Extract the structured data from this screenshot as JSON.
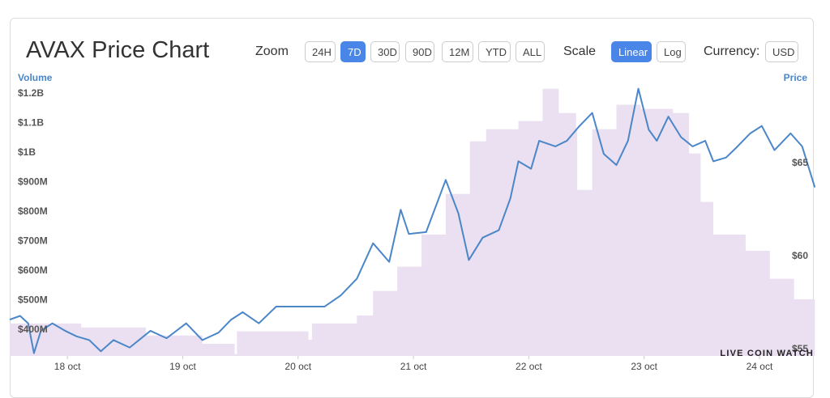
{
  "header": {
    "title": "AVAX Price Chart"
  },
  "controls": {
    "zoom": {
      "label": "Zoom",
      "options": [
        "24H",
        "7D",
        "30D",
        "90D",
        "12M",
        "YTD",
        "ALL"
      ],
      "active": 1
    },
    "scale": {
      "label": "Scale",
      "options": [
        "Linear",
        "Log"
      ],
      "active": 0
    },
    "currency": {
      "label": "Currency:",
      "options": [
        "USD"
      ],
      "active": -1
    }
  },
  "watermark": "LIVE COIN WATCH",
  "chart_data": {
    "type": "line",
    "y_label": "Volume",
    "y2_label": "Price",
    "xlim": [
      17.5,
      24.485
    ],
    "xticks": [
      {
        "value": 18,
        "label": "18 oct"
      },
      {
        "value": 19,
        "label": "19 oct"
      },
      {
        "value": 20,
        "label": "20 oct"
      },
      {
        "value": 21,
        "label": "21 oct"
      },
      {
        "value": 22,
        "label": "22 oct"
      },
      {
        "value": 23,
        "label": "23 oct"
      },
      {
        "value": 24,
        "label": "24 oct"
      }
    ],
    "ylim": [
      312000000,
      1229000000
    ],
    "yticks": [
      {
        "value": 400000000,
        "label": "$400M"
      },
      {
        "value": 500000000,
        "label": "$500M"
      },
      {
        "value": 600000000,
        "label": "$600M"
      },
      {
        "value": 700000000,
        "label": "$700M"
      },
      {
        "value": 800000000,
        "label": "$800M"
      },
      {
        "value": 900000000,
        "label": "$900M"
      },
      {
        "value": 1000000000,
        "label": "$1B"
      },
      {
        "value": 1100000000,
        "label": "$1.1B"
      },
      {
        "value": 1200000000,
        "label": "$1.2B"
      }
    ],
    "y2lim": [
      54.65,
      69.2
    ],
    "y2ticks": [
      {
        "value": 55,
        "label": "$55"
      },
      {
        "value": 60,
        "label": "$60"
      },
      {
        "value": 65,
        "label": "$65"
      }
    ],
    "grid": false,
    "series": [
      {
        "kind": "area",
        "color": "#ebe0f1",
        "x": [
          17.5,
          18.12,
          18.68,
          19.17,
          19.45,
          19.47,
          20.09,
          20.12,
          20.51,
          20.65,
          20.86,
          21.07,
          21.28,
          21.49,
          21.63,
          21.91,
          22.12,
          22.26,
          22.41,
          22.42,
          22.53,
          22.55,
          22.76,
          22.97,
          23.25,
          23.39,
          23.49,
          23.6,
          23.88,
          24.09,
          24.3,
          24.48
        ],
        "values": [
          422000000,
          408000000,
          381000000,
          353000000,
          318000000,
          395000000,
          367000000,
          422000000,
          449000000,
          532000000,
          614000000,
          723000000,
          860000000,
          1038000000,
          1079000000,
          1107000000,
          1216000000,
          1134000000,
          1079000000,
          874000000,
          874000000,
          1079000000,
          1162000000,
          1148000000,
          1134000000,
          997000000,
          833000000,
          723000000,
          668000000,
          573000000,
          504000000,
          499000000
        ]
      },
      {
        "kind": "line",
        "axis": "y2",
        "color": "#4a86c8",
        "x": [
          17.5,
          17.59,
          17.66,
          17.71,
          17.77,
          17.87,
          17.98,
          18.08,
          18.19,
          18.29,
          18.4,
          18.54,
          18.72,
          18.86,
          19.03,
          19.17,
          19.31,
          19.42,
          19.52,
          19.66,
          19.81,
          19.95,
          20.09,
          20.23,
          20.37,
          20.51,
          20.65,
          20.79,
          20.89,
          20.96,
          21.11,
          21.28,
          21.39,
          21.48,
          21.6,
          21.74,
          21.84,
          21.91,
          22.02,
          22.09,
          22.23,
          22.33,
          22.44,
          22.55,
          22.65,
          22.76,
          22.86,
          22.95,
          23.04,
          23.11,
          23.21,
          23.32,
          23.42,
          23.53,
          23.6,
          23.71,
          23.81,
          23.92,
          24.02,
          24.13,
          24.27,
          24.37,
          24.48
        ],
        "values": [
          56.6,
          56.8,
          56.4,
          54.8,
          56.0,
          56.4,
          56.0,
          55.7,
          55.5,
          54.9,
          55.5,
          55.1,
          56.0,
          55.6,
          56.4,
          55.5,
          55.9,
          56.6,
          57.0,
          56.4,
          57.3,
          57.3,
          57.3,
          57.3,
          57.9,
          58.8,
          60.7,
          59.7,
          62.5,
          61.2,
          61.3,
          64.1,
          62.3,
          59.8,
          61.0,
          61.4,
          63.1,
          65.1,
          64.7,
          66.2,
          65.9,
          66.2,
          67.0,
          67.7,
          65.5,
          64.9,
          66.2,
          69.0,
          66.8,
          66.2,
          67.5,
          66.4,
          65.9,
          66.2,
          65.1,
          65.3,
          65.9,
          66.6,
          67.0,
          65.7,
          66.6,
          65.9,
          63.7
        ]
      }
    ]
  }
}
